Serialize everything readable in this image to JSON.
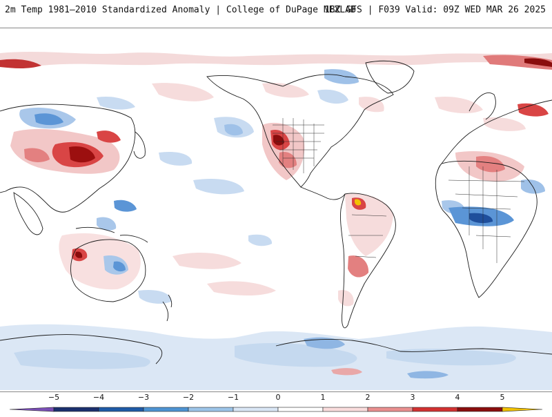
{
  "header": {
    "title_left": "2m Temp 1981–2010 Standardized Anomaly | College of DuPage NEXLAB",
    "title_right": "18Z GFS | F039 Valid: 09Z WED MAR 26 2025"
  },
  "colorbar": {
    "tick_labels": [
      "−5",
      "−4",
      "−3",
      "−2",
      "−1",
      "0",
      "1",
      "2",
      "3",
      "4",
      "5"
    ],
    "colors": {
      "lt_-5": "#7a4fb6",
      "-5_-4": "#1b2f6e",
      "-4_-3": "#1f5aa6",
      "-3_-2": "#4d93d2",
      "-2_-1": "#9cc4e8",
      "-1_0": "#d9e6f5",
      "0_1": "#ffffff",
      "1_2": "#f9dcdc",
      "2_3": "#e98f8f",
      "3_4": "#d23131",
      "4_5": "#8a0d0d",
      "gt_5": "#f2c200"
    }
  },
  "map": {
    "projection": "equirectangular, Pacific-centered",
    "anomaly_palette": {
      "warm_light": "#f7d6d6",
      "warm_mid": "#e88a8a",
      "warm_strong": "#c52020",
      "warm_extreme": "#7c0a0a",
      "cool_light": "#d6e5f5",
      "cool_mid": "#a7c8ea",
      "cool_strong": "#4e8fd3",
      "cool_extreme": "#1f4f9c",
      "hot_spot": "#f2c200",
      "coastline": "#1a1a1a"
    }
  }
}
